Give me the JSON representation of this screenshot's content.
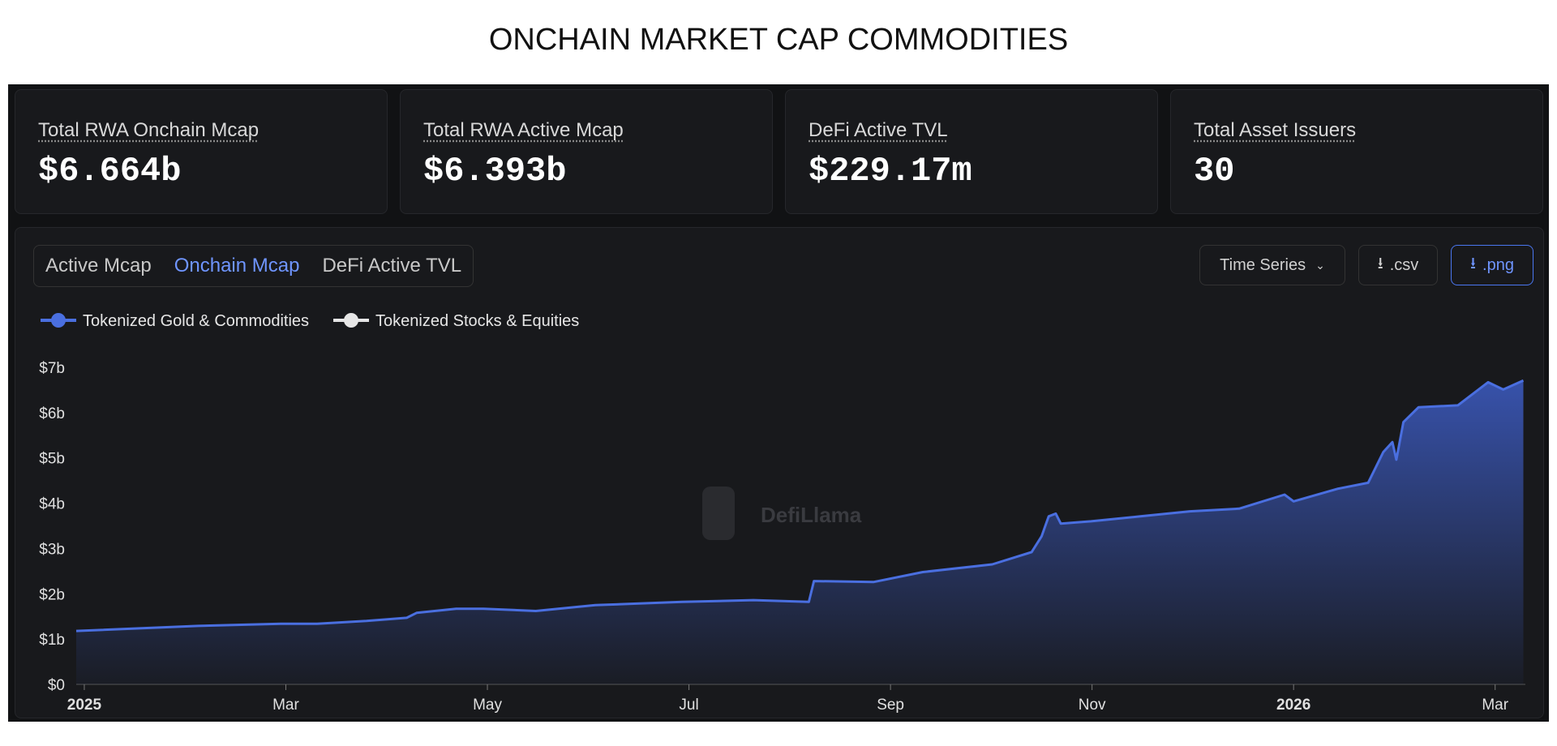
{
  "header": {
    "title": "ONCHAIN MARKET CAP COMMODITIES"
  },
  "stats": [
    {
      "label": "Total RWA Onchain Mcap",
      "value": "$6.664b"
    },
    {
      "label": "Total RWA Active Mcap",
      "value": "$6.393b"
    },
    {
      "label": "DeFi Active TVL",
      "value": "$229.17m"
    },
    {
      "label": "Total Asset Issuers",
      "value": "30"
    }
  ],
  "tabs": [
    "Active Mcap",
    "Onchain Mcap",
    "DeFi Active TVL"
  ],
  "active_tab": 1,
  "buttons": [
    "Time Series",
    ".csv",
    ".png"
  ],
  "watermark": "DefiLlama",
  "chart_data": {
    "type": "area",
    "x": [
      -0.08,
      1.13,
      1.95,
      2.31,
      2.8,
      3.2,
      3.3,
      3.69,
      3.96,
      4.48,
      5.07,
      5.93,
      6.64,
      7.19,
      7.24,
      7.83,
      8.32,
      9.01,
      9.4,
      9.5,
      9.57,
      9.64,
      9.69,
      9.99,
      10.48,
      10.97,
      11.46,
      11.91,
      12.0,
      12.44,
      12.74,
      12.89,
      12.98,
      13.02,
      13.09,
      13.24,
      13.63,
      13.93,
      14.08,
      14.28
    ],
    "series": [
      {
        "name": "Tokenized Gold & Commodities",
        "color": "#4a6fe0",
        "values": [
          1.18,
          1.29,
          1.34,
          1.34,
          1.4,
          1.47,
          1.58,
          1.67,
          1.67,
          1.62,
          1.75,
          1.82,
          1.86,
          1.82,
          2.28,
          2.26,
          2.48,
          2.65,
          2.92,
          3.27,
          3.71,
          3.77,
          3.55,
          3.6,
          3.71,
          3.82,
          3.88,
          4.19,
          4.04,
          4.32,
          4.45,
          5.13,
          5.35,
          4.96,
          5.79,
          6.12,
          6.16,
          6.67,
          6.51,
          6.71
        ]
      },
      {
        "name": "Tokenized Stocks & Equities",
        "color": "#e6e6e6",
        "values": [
          null,
          null,
          null,
          null,
          null,
          null,
          null,
          null,
          null,
          null,
          null,
          null,
          null,
          null,
          null,
          null,
          null,
          null,
          null,
          null,
          null,
          null,
          null,
          null,
          null,
          null,
          null,
          null,
          null,
          null,
          null,
          null,
          null,
          null,
          null,
          null,
          null,
          null,
          null,
          null
        ]
      }
    ],
    "xlim": [
      -0.08,
      14.3
    ],
    "xticks": [
      {
        "value": 0,
        "label": "2025"
      },
      {
        "value": 2,
        "label": "Mar"
      },
      {
        "value": 4,
        "label": "May"
      },
      {
        "value": 6,
        "label": "Jul"
      },
      {
        "value": 8,
        "label": "Sep"
      },
      {
        "value": 10,
        "label": "Nov"
      },
      {
        "value": 12,
        "label": "2026"
      },
      {
        "value": 14,
        "label": "Mar"
      }
    ],
    "ylim": [
      0,
      7
    ],
    "yticks": [
      {
        "value": 0,
        "label": "$0"
      },
      {
        "value": 1,
        "label": "$1b"
      },
      {
        "value": 2,
        "label": "$2b"
      },
      {
        "value": 3,
        "label": "$3b"
      },
      {
        "value": 4,
        "label": "$4b"
      },
      {
        "value": 5,
        "label": "$5b"
      },
      {
        "value": 6,
        "label": "$6b"
      },
      {
        "value": 7,
        "label": "$7b"
      }
    ]
  }
}
